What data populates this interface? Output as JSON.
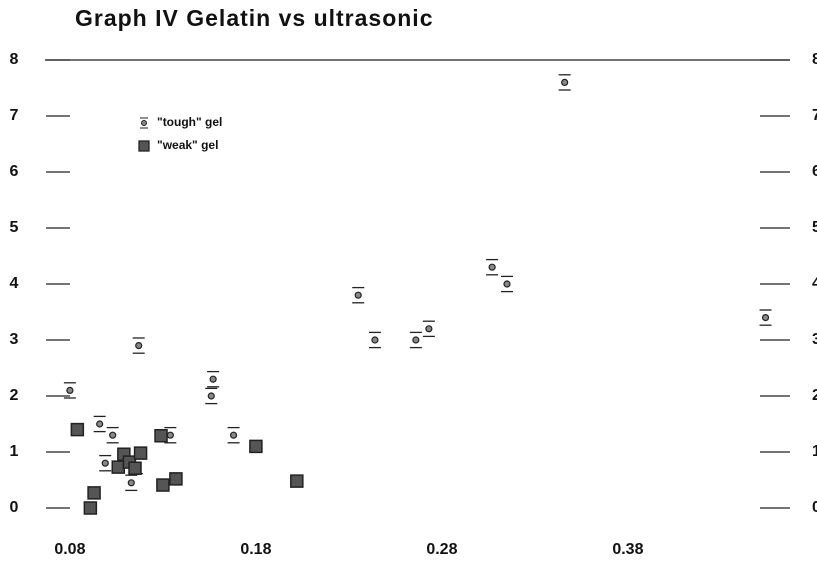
{
  "chart_data": {
    "type": "scatter",
    "title": "Graph IV   Gelatin vs ultrasonic",
    "xlim": [
      0.065,
      0.465
    ],
    "xticks": [
      0.08,
      0.18,
      0.28,
      0.38
    ],
    "ylim": [
      0,
      8
    ],
    "yticks": [
      0,
      1,
      2,
      3,
      4,
      5,
      6,
      7,
      8
    ],
    "legend": "upper left",
    "series": [
      {
        "name": "\"tough\" gel",
        "color": "#222",
        "marker": "circle",
        "x": [
          0.08,
          0.096,
          0.103,
          0.099,
          0.113,
          0.117,
          0.116,
          0.134,
          0.157,
          0.156,
          0.168,
          0.235,
          0.244,
          0.266,
          0.273,
          0.307,
          0.315,
          0.346,
          0.454
        ],
        "values": [
          2.1,
          1.5,
          1.3,
          0.8,
          0.45,
          2.9,
          0.75,
          1.3,
          2.3,
          2.0,
          1.3,
          3.8,
          3.0,
          3.0,
          3.2,
          4.3,
          4.0,
          7.6,
          3.4
        ],
        "errors": [
          0.1,
          0.1,
          0.1,
          0.1,
          0.1,
          0.1,
          0.1,
          0.1,
          0.1,
          0.1,
          0.1,
          0.1,
          0.1,
          0.1,
          0.1,
          0.1,
          0.1,
          0.1,
          0.1
        ]
      },
      {
        "name": "\"weak\" gel",
        "color": "#222",
        "marker": "square",
        "x": [
          0.084,
          0.091,
          0.093,
          0.106,
          0.109,
          0.112,
          0.115,
          0.118,
          0.129,
          0.13,
          0.137,
          0.18,
          0.202
        ],
        "values": [
          1.4,
          0.0,
          0.27,
          0.73,
          0.96,
          0.82,
          0.71,
          0.98,
          1.29,
          0.41,
          0.52,
          1.1,
          0.48
        ]
      }
    ]
  }
}
